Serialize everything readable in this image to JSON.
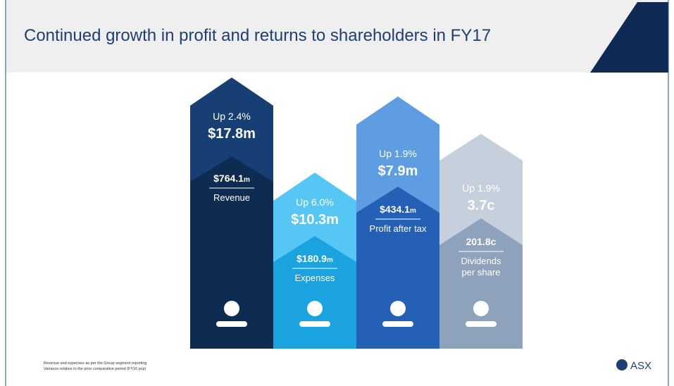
{
  "header": {
    "title": "Continued growth in profit and returns to shareholders in FY17"
  },
  "columns": [
    {
      "variance": "Up 2.4%",
      "change": "$17.8m",
      "amount": "$764.1",
      "unit": "m",
      "label": [
        "Revenue"
      ]
    },
    {
      "variance": "Up 6.0%",
      "change": "$10.3m",
      "amount": "$180.9",
      "unit": "m",
      "label": [
        "Expenses"
      ]
    },
    {
      "variance": "Up 1.9%",
      "change": "$7.9m",
      "amount": "$434.1",
      "unit": "m",
      "label": [
        "Profit after tax"
      ]
    },
    {
      "variance": "Up 1.9%",
      "change": "3.7c",
      "amount": "201.8c",
      "unit": "",
      "label": [
        "Dividends",
        "per share"
      ]
    }
  ],
  "footnotes": [
    "Revenue and expenses as per the Group segment reporting",
    "Variance relative to the prior comparative period (FY16 pcp)"
  ],
  "logo": "ASX"
}
